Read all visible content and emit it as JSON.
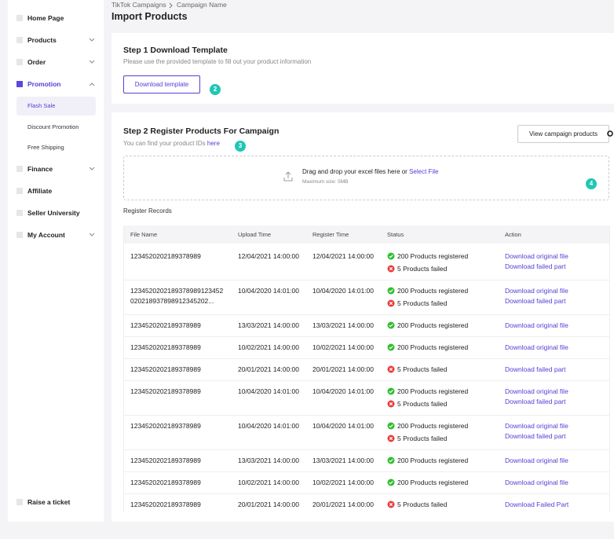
{
  "sidebar": {
    "menu": [
      "Home Page",
      "Products",
      "Order",
      "Promotion",
      "Finance",
      "Affiliate",
      "Seller University",
      "My Account"
    ],
    "promotion_submenu": [
      "Flash Sale",
      "Discount Promotion",
      "Free Shipping"
    ],
    "footer": "Raise a ticket"
  },
  "header": {
    "breadcrumb": [
      "TikTok Campaigns",
      "Campaign Name"
    ],
    "title": "Import Products"
  },
  "step1": {
    "title": "Step 1 Download Template",
    "subtitle": "Please use the provided template to fill out your product information",
    "button": "Download template",
    "badge": "2"
  },
  "step2": {
    "title": "Step 2 Register Products For Campaign",
    "subtitle": "You can find your product IDs",
    "link": "here",
    "badge": "3",
    "button": "View campaign products",
    "upload": {
      "text": "Drag and drop your excel files here or",
      "link": "Select File",
      "hint": "Maximum size: 5MB",
      "badge": "4"
    }
  },
  "records": {
    "title": "Register Records",
    "columns": [
      "File Name",
      "Upload Time",
      "Register Time",
      "Status",
      "Action"
    ],
    "rows": [
      {
        "file_name": [
          "1234520202189378989"
        ],
        "upload_time": "12/04/2021 14:00:00",
        "register_time": "12/04/2021 14:00:00",
        "registered": "200 Products registered",
        "failed": "5 Products failed",
        "actions": [
          "Download original file",
          "Download failed part"
        ]
      },
      {
        "file_name": [
          "1234520202189378989123452",
          "020218937898912345202..."
        ],
        "upload_time": "10/04/2020 14:01:00",
        "register_time": "10/04/2020 14:01:00",
        "registered": "200 Products registered",
        "failed": "5 Products failed",
        "actions": [
          "Download original file",
          "Download failed part"
        ]
      },
      {
        "file_name": [
          "1234520202189378989"
        ],
        "upload_time": "13/03/2021 14:00:00",
        "register_time": "13/03/2021 14:00:00",
        "registered": "200 Products registered",
        "actions": [
          "Download original file"
        ]
      },
      {
        "file_name": [
          "1234520202189378989"
        ],
        "upload_time": "10/02/2021 14:00:00",
        "register_time": "10/02/2021 14:00:00",
        "registered": "200 Products registered",
        "actions": [
          "Download original file"
        ]
      },
      {
        "file_name": [
          "1234520202189378989"
        ],
        "upload_time": "20/01/2021 14:00:00",
        "register_time": "20/01/2021 14:00:00",
        "failed": "5 Products failed",
        "actions": [
          "Download failed part"
        ]
      },
      {
        "file_name": [
          "1234520202189378989"
        ],
        "upload_time": "10/04/2020 14:01:00",
        "register_time": "10/04/2020 14:01:00",
        "registered": "200 Products registered",
        "failed": "5 Products failed",
        "actions": [
          "Download original file",
          "Download failed part"
        ]
      },
      {
        "file_name": [
          "1234520202189378989"
        ],
        "upload_time": "10/04/2020 14:01:00",
        "register_time": "10/04/2020 14:01:00",
        "registered": "200 Products registered",
        "failed": "5 Products failed",
        "actions": [
          "Download original file",
          "Download failed part"
        ]
      },
      {
        "file_name": [
          "1234520202189378989"
        ],
        "upload_time": "13/03/2021 14:00:00",
        "register_time": "13/03/2021 14:00:00",
        "registered": "200 Products registered",
        "actions": [
          "Download original file"
        ]
      },
      {
        "file_name": [
          "1234520202189378989"
        ],
        "upload_time": "10/02/2021 14:00:00",
        "register_time": "10/02/2021 14:00:00",
        "registered": "200 Products registered",
        "actions": [
          "Download original file"
        ]
      },
      {
        "file_name": [
          "1234520202189378989"
        ],
        "upload_time": "20/01/2021 14:00:00",
        "register_time": "20/01/2021 14:00:00",
        "failed": "5 Products failed",
        "actions": [
          "Download Failed Part"
        ]
      }
    ]
  }
}
